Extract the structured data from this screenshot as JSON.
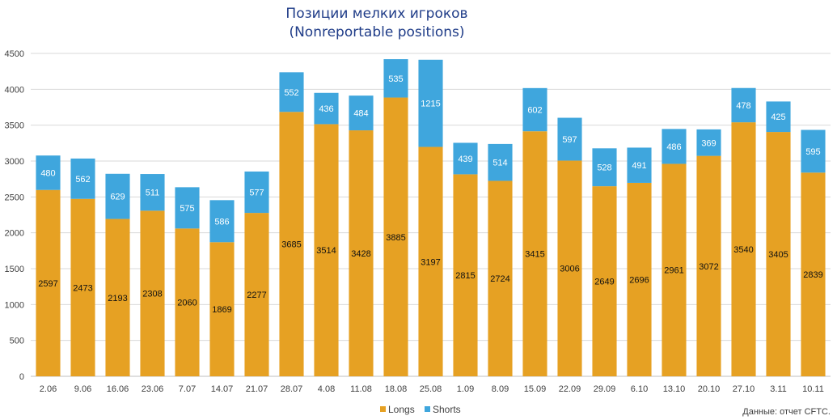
{
  "chart_data": {
    "type": "bar",
    "stacked": true,
    "title": "Позиции мелких игроков",
    "subtitle": "(Nonreportable positions)",
    "xlabel": "",
    "ylabel": "",
    "ylim": [
      0,
      4500
    ],
    "yticks": [
      0,
      500,
      1000,
      1500,
      2000,
      2500,
      3000,
      3500,
      4000,
      4500
    ],
    "grid": true,
    "legend_position": "bottom",
    "categories": [
      "2.06",
      "9.06",
      "16.06",
      "23.06",
      "7.07",
      "14.07",
      "21.07",
      "28.07",
      "4.08",
      "11.08",
      "18.08",
      "25.08",
      "1.09",
      "8.09",
      "15.09",
      "22.09",
      "29.09",
      "6.10",
      "13.10",
      "20.10",
      "27.10",
      "3.11",
      "10.11"
    ],
    "series": [
      {
        "name": "Longs",
        "color": "#e6a123",
        "label_color": "#111111",
        "values": [
          2597,
          2473,
          2193,
          2308,
          2060,
          1869,
          2277,
          3685,
          3514,
          3428,
          3885,
          3197,
          2815,
          2724,
          3415,
          3006,
          2649,
          2696,
          2961,
          3072,
          3540,
          3405,
          2839
        ]
      },
      {
        "name": "Shorts",
        "color": "#3fa6dd",
        "label_color": "#ffffff",
        "values": [
          480,
          562,
          629,
          511,
          575,
          586,
          577,
          552,
          436,
          484,
          535,
          1215,
          439,
          514,
          602,
          597,
          528,
          491,
          486,
          369,
          478,
          425,
          595
        ]
      }
    ],
    "source_note": "Данные: отчет CFTC."
  }
}
